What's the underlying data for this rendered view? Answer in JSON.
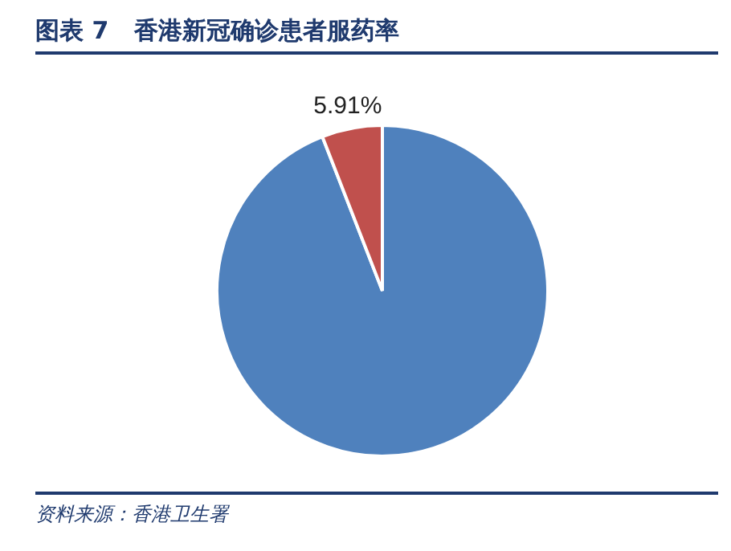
{
  "chart_data": {
    "type": "pie",
    "title": "图表 7   香港新冠确诊患者服药率",
    "categories": [
      null,
      null
    ],
    "values": [
      94.09,
      5.91
    ],
    "colors": [
      "#4f81bd",
      "#c0504d"
    ],
    "value_labels": [
      null,
      "5.91%"
    ],
    "annotations": [
      "资料来源：香港卫生署"
    ]
  }
}
